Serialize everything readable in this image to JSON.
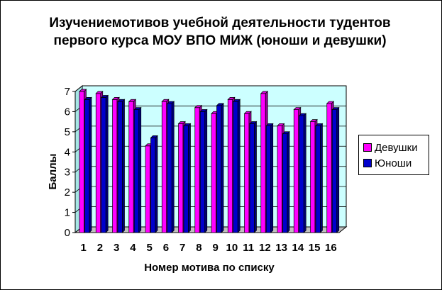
{
  "chart_data": {
    "type": "bar",
    "title": "Изучениемотивов учебной деятельности тудентов первого курса МОУ ВПО МИЖ (юноши и девушки)",
    "xlabel": "Номер мотива по списку",
    "ylabel": "Баллы",
    "ylim": [
      0,
      7
    ],
    "yticks": [
      "0",
      "1",
      "2",
      "3",
      "4",
      "5",
      "6",
      "7"
    ],
    "categories": [
      "1",
      "2",
      "3",
      "4",
      "5",
      "6",
      "7",
      "8",
      "9",
      "10",
      "11",
      "12",
      "13",
      "14",
      "15",
      "16"
    ],
    "series": [
      {
        "name": "Девушки",
        "color": "#ff00ff",
        "values": [
          7.0,
          6.9,
          6.6,
          6.5,
          4.3,
          6.5,
          5.4,
          6.2,
          5.9,
          6.6,
          5.9,
          6.9,
          5.3,
          6.1,
          5.5,
          6.4
        ]
      },
      {
        "name": "Юноши",
        "color": "#0000cc",
        "values": [
          6.6,
          6.7,
          6.5,
          6.1,
          4.7,
          6.4,
          5.3,
          6.0,
          6.3,
          6.5,
          5.4,
          5.3,
          4.9,
          5.8,
          5.3,
          6.1
        ]
      }
    ],
    "legend_position": "right",
    "grid": true,
    "colors": {
      "wall": "#ccffff",
      "floor": "#c0c0c0"
    }
  }
}
